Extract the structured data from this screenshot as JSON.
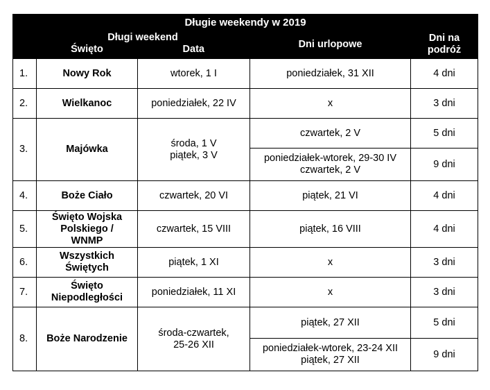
{
  "table": {
    "title": "Długie weekendy w 2019",
    "header": {
      "group_label": "Długi weekend",
      "holiday": "Święto",
      "date": "Data",
      "vacation_days": "Dni urlopowe",
      "travel_days_line1": "Dni na",
      "travel_days_line2": "podróż"
    },
    "rows": [
      {
        "num": "1.",
        "holiday": [
          "Nowy Rok"
        ],
        "date": [
          "wtorek, 1 I"
        ],
        "options": [
          {
            "vacation": [
              "poniedziałek, 31 XII"
            ],
            "days": "4 dni"
          }
        ]
      },
      {
        "num": "2.",
        "holiday": [
          "Wielkanoc"
        ],
        "date": [
          "poniedziałek, 22 IV"
        ],
        "options": [
          {
            "vacation": [
              "x"
            ],
            "days": "3 dni"
          }
        ]
      },
      {
        "num": "3.",
        "holiday": [
          "Majówka"
        ],
        "date": [
          "środa, 1 V",
          "piątek, 3 V"
        ],
        "options": [
          {
            "vacation": [
              "czwartek, 2 V"
            ],
            "days": "5 dni"
          },
          {
            "vacation": [
              "poniedziałek-wtorek, 29-30 IV",
              "czwartek, 2 V"
            ],
            "days": "9 dni"
          }
        ]
      },
      {
        "num": "4.",
        "holiday": [
          "Boże Ciało"
        ],
        "date": [
          "czwartek, 20 VI"
        ],
        "options": [
          {
            "vacation": [
              "piątek, 21 VI"
            ],
            "days": "4 dni"
          }
        ]
      },
      {
        "num": "5.",
        "holiday": [
          "Święto Wojska",
          "Polskiego /",
          "WNMP"
        ],
        "date": [
          "czwartek, 15 VIII"
        ],
        "options": [
          {
            "vacation": [
              "piątek, 16 VIII"
            ],
            "days": "4 dni"
          }
        ]
      },
      {
        "num": "6.",
        "holiday": [
          "Wszystkich",
          "Świętych"
        ],
        "date": [
          "piątek, 1 XI"
        ],
        "options": [
          {
            "vacation": [
              "x"
            ],
            "days": "3 dni"
          }
        ]
      },
      {
        "num": "7.",
        "holiday": [
          "Święto",
          "Niepodległości"
        ],
        "date": [
          "poniedziałek, 11 XI"
        ],
        "options": [
          {
            "vacation": [
              "x"
            ],
            "days": "3 dni"
          }
        ]
      },
      {
        "num": "8.",
        "holiday": [
          "Boże Narodzenie"
        ],
        "date": [
          "środa-czwartek,",
          "25-26 XII"
        ],
        "options": [
          {
            "vacation": [
              "piątek, 27 XII"
            ],
            "days": "5 dni"
          },
          {
            "vacation": [
              "poniedziałek-wtorek, 23-24 XII",
              "piątek, 27 XII"
            ],
            "days": "9 dni"
          }
        ]
      }
    ]
  }
}
